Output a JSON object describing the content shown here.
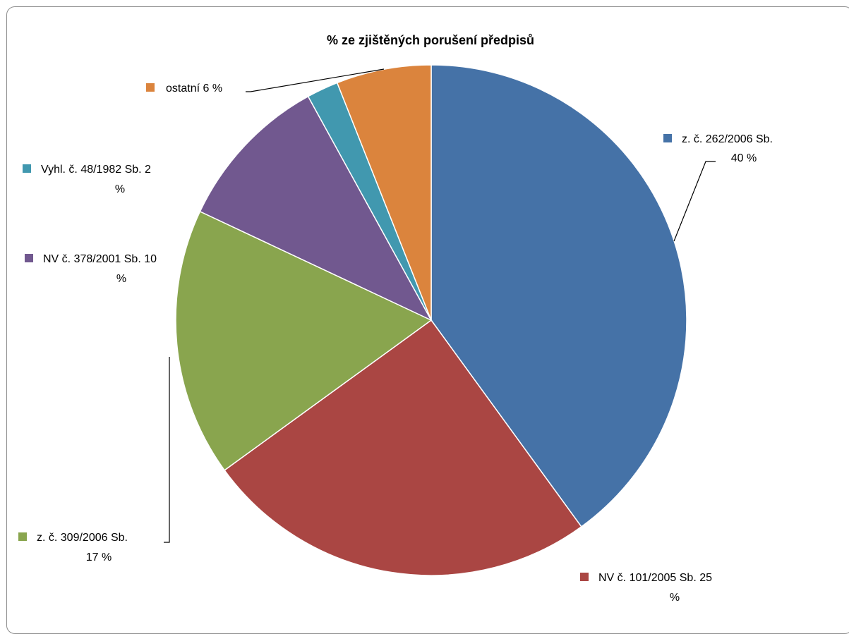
{
  "chart_data": {
    "type": "pie",
    "title": "% ze zjištěných porušení předpisů",
    "slices": [
      {
        "label": "z. č. 262/2006 Sb.",
        "value": 40,
        "pct_text": "40 %",
        "color": "#4572A7"
      },
      {
        "label": "NV č. 101/2005 Sb.",
        "value": 25,
        "pct_text": "25 %",
        "color": "#AA4643"
      },
      {
        "label": "z. č. 309/2006 Sb.",
        "value": 17,
        "pct_text": "17 %",
        "color": "#89A54E"
      },
      {
        "label": "NV č. 378/2001 Sb.",
        "value": 10,
        "pct_text": "10 %",
        "color": "#71588F"
      },
      {
        "label": "Vyhl. č. 48/1982 Sb.",
        "value": 2,
        "pct_text": "2 %",
        "color": "#4198AF"
      },
      {
        "label": "ostatní",
        "value": 6,
        "pct_text": "6 %",
        "color": "#DB843D"
      }
    ],
    "data_labels": [
      {
        "line1": "z. č. 262/2006 Sb.",
        "line2": "40 %"
      },
      {
        "line1": "NV č. 101/2005 Sb. 25",
        "line2": "%"
      },
      {
        "line1": "z. č. 309/2006 Sb.",
        "line2": "17 %"
      },
      {
        "line1": "NV č. 378/2001 Sb.  10",
        "line2": "%"
      },
      {
        "line1": "Vyhl. č. 48/1982 Sb. 2",
        "line2": "%"
      },
      {
        "line1": "ostatní 6 %",
        "line2": ""
      }
    ],
    "legend": "none",
    "start_angle_deg": 0,
    "direction": "clockwise"
  }
}
